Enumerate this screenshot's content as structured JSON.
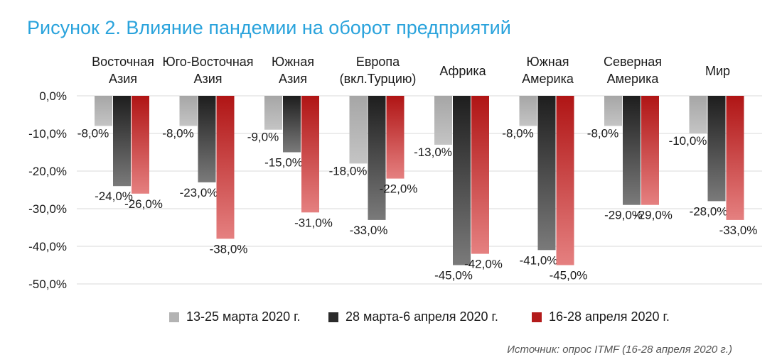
{
  "title": "Рисунок 2. Влияние пандемии на оборот предприятий",
  "source": "Источник: опрос ITMF (16-28 апреля 2020 г.)",
  "colors": {
    "title": "#2aa3dc",
    "series1": "#b3b3b3",
    "series2": "#2b2b2b",
    "series3": "#b31b1b",
    "grid": "#d9d9d9"
  },
  "chart_data": {
    "type": "bar",
    "orientation": "vertical-negative",
    "categories": [
      [
        "Восточная",
        "Азия"
      ],
      [
        "Юго-Восточная",
        "Азия"
      ],
      [
        "Южная",
        "Азия"
      ],
      [
        "Европа",
        "(вкл.Турцию)"
      ],
      [
        "Африка"
      ],
      [
        "Южная",
        "Америка"
      ],
      [
        "Северная",
        "Америка"
      ],
      [
        "Мир"
      ]
    ],
    "series": [
      {
        "name": "13-25 марта 2020 г.",
        "values": [
          -8,
          -8,
          -9,
          -18,
          -13,
          -8,
          -8,
          -10
        ]
      },
      {
        "name": "28 марта-6 апреля 2020 г.",
        "values": [
          -24,
          -23,
          -15,
          -33,
          -45,
          -41,
          -29,
          -28
        ]
      },
      {
        "name": "16-28 апреля 2020 г.",
        "values": [
          -26,
          -38,
          -31,
          -22,
          -42,
          -45,
          -29,
          -33
        ]
      }
    ],
    "data_labels": [
      [
        "-8,0%",
        "-8,0%",
        "-9,0%",
        "-18,0%",
        "-13,0%",
        "-8,0%",
        "-8,0%",
        "-10,0%"
      ],
      [
        "-24,0%",
        "-23,0%",
        "-15,0%",
        "-33,0%",
        "-45,0%",
        "-41,0%",
        "-29,0%",
        "-28,0%"
      ],
      [
        "-26,0%",
        "-38,0%",
        "-31,0%",
        "-22,0%",
        "-42,0%",
        "-45,0%",
        "-29,0%",
        "-33,0%"
      ]
    ],
    "y_ticks": [
      0,
      -10,
      -20,
      -30,
      -40,
      -50
    ],
    "y_tick_labels": [
      "0,0%",
      "-10,0%",
      "-20,0%",
      "-30,0%",
      "-40,0%",
      "-50,0%"
    ],
    "ylim": [
      -50,
      0
    ],
    "grid": true,
    "legend_position": "bottom"
  }
}
